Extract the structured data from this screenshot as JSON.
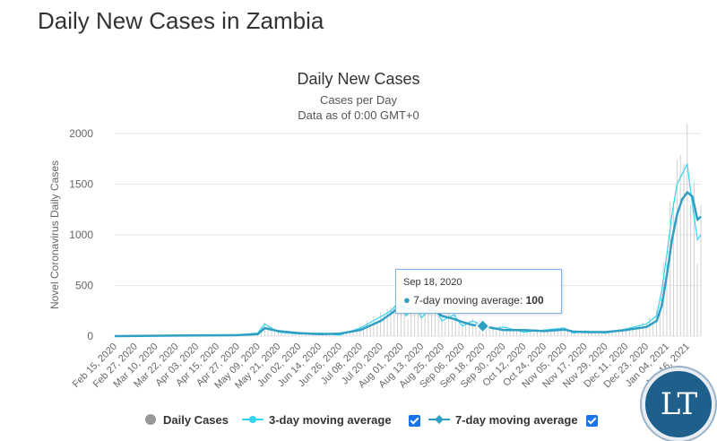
{
  "page": {
    "heading": "Daily New Cases in Zambia"
  },
  "logo": {
    "text": "LT"
  },
  "tooltip": {
    "date": "Sep 18, 2020",
    "series_label": "7-day moving average: ",
    "value": "100"
  },
  "legend": {
    "daily": "Daily Cases",
    "ma3": "3-day moving average",
    "ma7": "7-day moving average"
  },
  "colors": {
    "daily": "#999999",
    "bars": "#d0d0d0",
    "ma3": "#33d4f0",
    "ma7": "#2f9fc4",
    "grid": "#e6e6e6",
    "checkbox": "#1a73e8"
  },
  "chart_data": {
    "type": "line",
    "title": "Daily New Cases",
    "subtitle": "Cases per Day",
    "subtitle2": "Data as of 0:00 GMT+0",
    "ylabel": "Novel Coronavirus Daily Cases",
    "xlabel": "",
    "ylim": [
      0,
      2000
    ],
    "yticks": [
      0,
      500,
      1000,
      1500,
      2000
    ],
    "grid": true,
    "legend_position": "bottom",
    "x_tick_labels": [
      "Feb 15, 2020",
      "Feb 27, 2020",
      "Mar 10, 2020",
      "Mar 22, 2020",
      "Apr 03, 2020",
      "Apr 15, 2020",
      "Apr 27, 2020",
      "May 09, 2020",
      "May 21, 2020",
      "Jun 02, 2020",
      "Jun 14, 2020",
      "Jun 26, 2020",
      "Jul 08, 2020",
      "Jul 20, 2020",
      "Aug 01, 2020",
      "Aug 13, 2020",
      "Aug 25, 2020",
      "Sep 06, 2020",
      "Sep 18, 2020",
      "Sep 30, 2020",
      "Oct 12, 2020",
      "Oct 24, 2020",
      "Nov 05, 2020",
      "Nov 17, 2020",
      "Nov 29, 2020",
      "Dec 11, 2020",
      "Dec 23, 2020",
      "Jan 04, 2021",
      "Jan 16, 2021"
    ],
    "series": [
      {
        "name": "7-day moving average",
        "x": [
          "2020-02-15",
          "2020-03-22",
          "2020-04-27",
          "2020-05-09",
          "2020-05-13",
          "2020-05-21",
          "2020-06-02",
          "2020-06-14",
          "2020-06-26",
          "2020-07-08",
          "2020-07-20",
          "2020-07-26",
          "2020-08-01",
          "2020-08-04",
          "2020-08-10",
          "2020-08-13",
          "2020-08-20",
          "2020-08-25",
          "2020-09-01",
          "2020-09-06",
          "2020-09-12",
          "2020-09-18",
          "2020-09-24",
          "2020-09-30",
          "2020-10-12",
          "2020-10-24",
          "2020-11-05",
          "2020-11-10",
          "2020-11-17",
          "2020-11-29",
          "2020-12-11",
          "2020-12-23",
          "2020-12-29",
          "2021-01-01",
          "2021-01-04",
          "2021-01-07",
          "2021-01-10",
          "2021-01-13",
          "2021-01-16",
          "2021-01-19",
          "2021-01-22",
          "2021-01-24"
        ],
        "y": [
          0,
          5,
          10,
          20,
          80,
          50,
          30,
          20,
          25,
          60,
          150,
          220,
          300,
          280,
          250,
          230,
          260,
          200,
          170,
          140,
          110,
          100,
          80,
          60,
          60,
          50,
          65,
          45,
          40,
          40,
          60,
          90,
          150,
          300,
          600,
          950,
          1200,
          1350,
          1420,
          1380,
          1150,
          1180
        ]
      },
      {
        "name": "3-day moving average",
        "x": [
          "2020-02-15",
          "2020-03-22",
          "2020-04-27",
          "2020-05-09",
          "2020-05-13",
          "2020-05-21",
          "2020-06-02",
          "2020-06-14",
          "2020-06-26",
          "2020-07-08",
          "2020-07-20",
          "2020-07-26",
          "2020-08-01",
          "2020-08-04",
          "2020-08-10",
          "2020-08-13",
          "2020-08-20",
          "2020-08-25",
          "2020-09-01",
          "2020-09-06",
          "2020-09-12",
          "2020-09-18",
          "2020-09-24",
          "2020-09-30",
          "2020-10-12",
          "2020-10-24",
          "2020-11-05",
          "2020-11-10",
          "2020-11-17",
          "2020-11-29",
          "2020-12-11",
          "2020-12-23",
          "2020-12-29",
          "2021-01-01",
          "2021-01-04",
          "2021-01-07",
          "2021-01-10",
          "2021-01-13",
          "2021-01-16",
          "2021-01-19",
          "2021-01-22",
          "2021-01-24"
        ],
        "y": [
          0,
          5,
          12,
          30,
          120,
          40,
          20,
          30,
          10,
          80,
          190,
          250,
          360,
          200,
          300,
          180,
          320,
          150,
          210,
          100,
          150,
          110,
          70,
          90,
          40,
          60,
          80,
          30,
          50,
          30,
          70,
          120,
          200,
          450,
          800,
          1200,
          1500,
          1600,
          1700,
          1300,
          950,
          1000
        ]
      }
    ]
  }
}
